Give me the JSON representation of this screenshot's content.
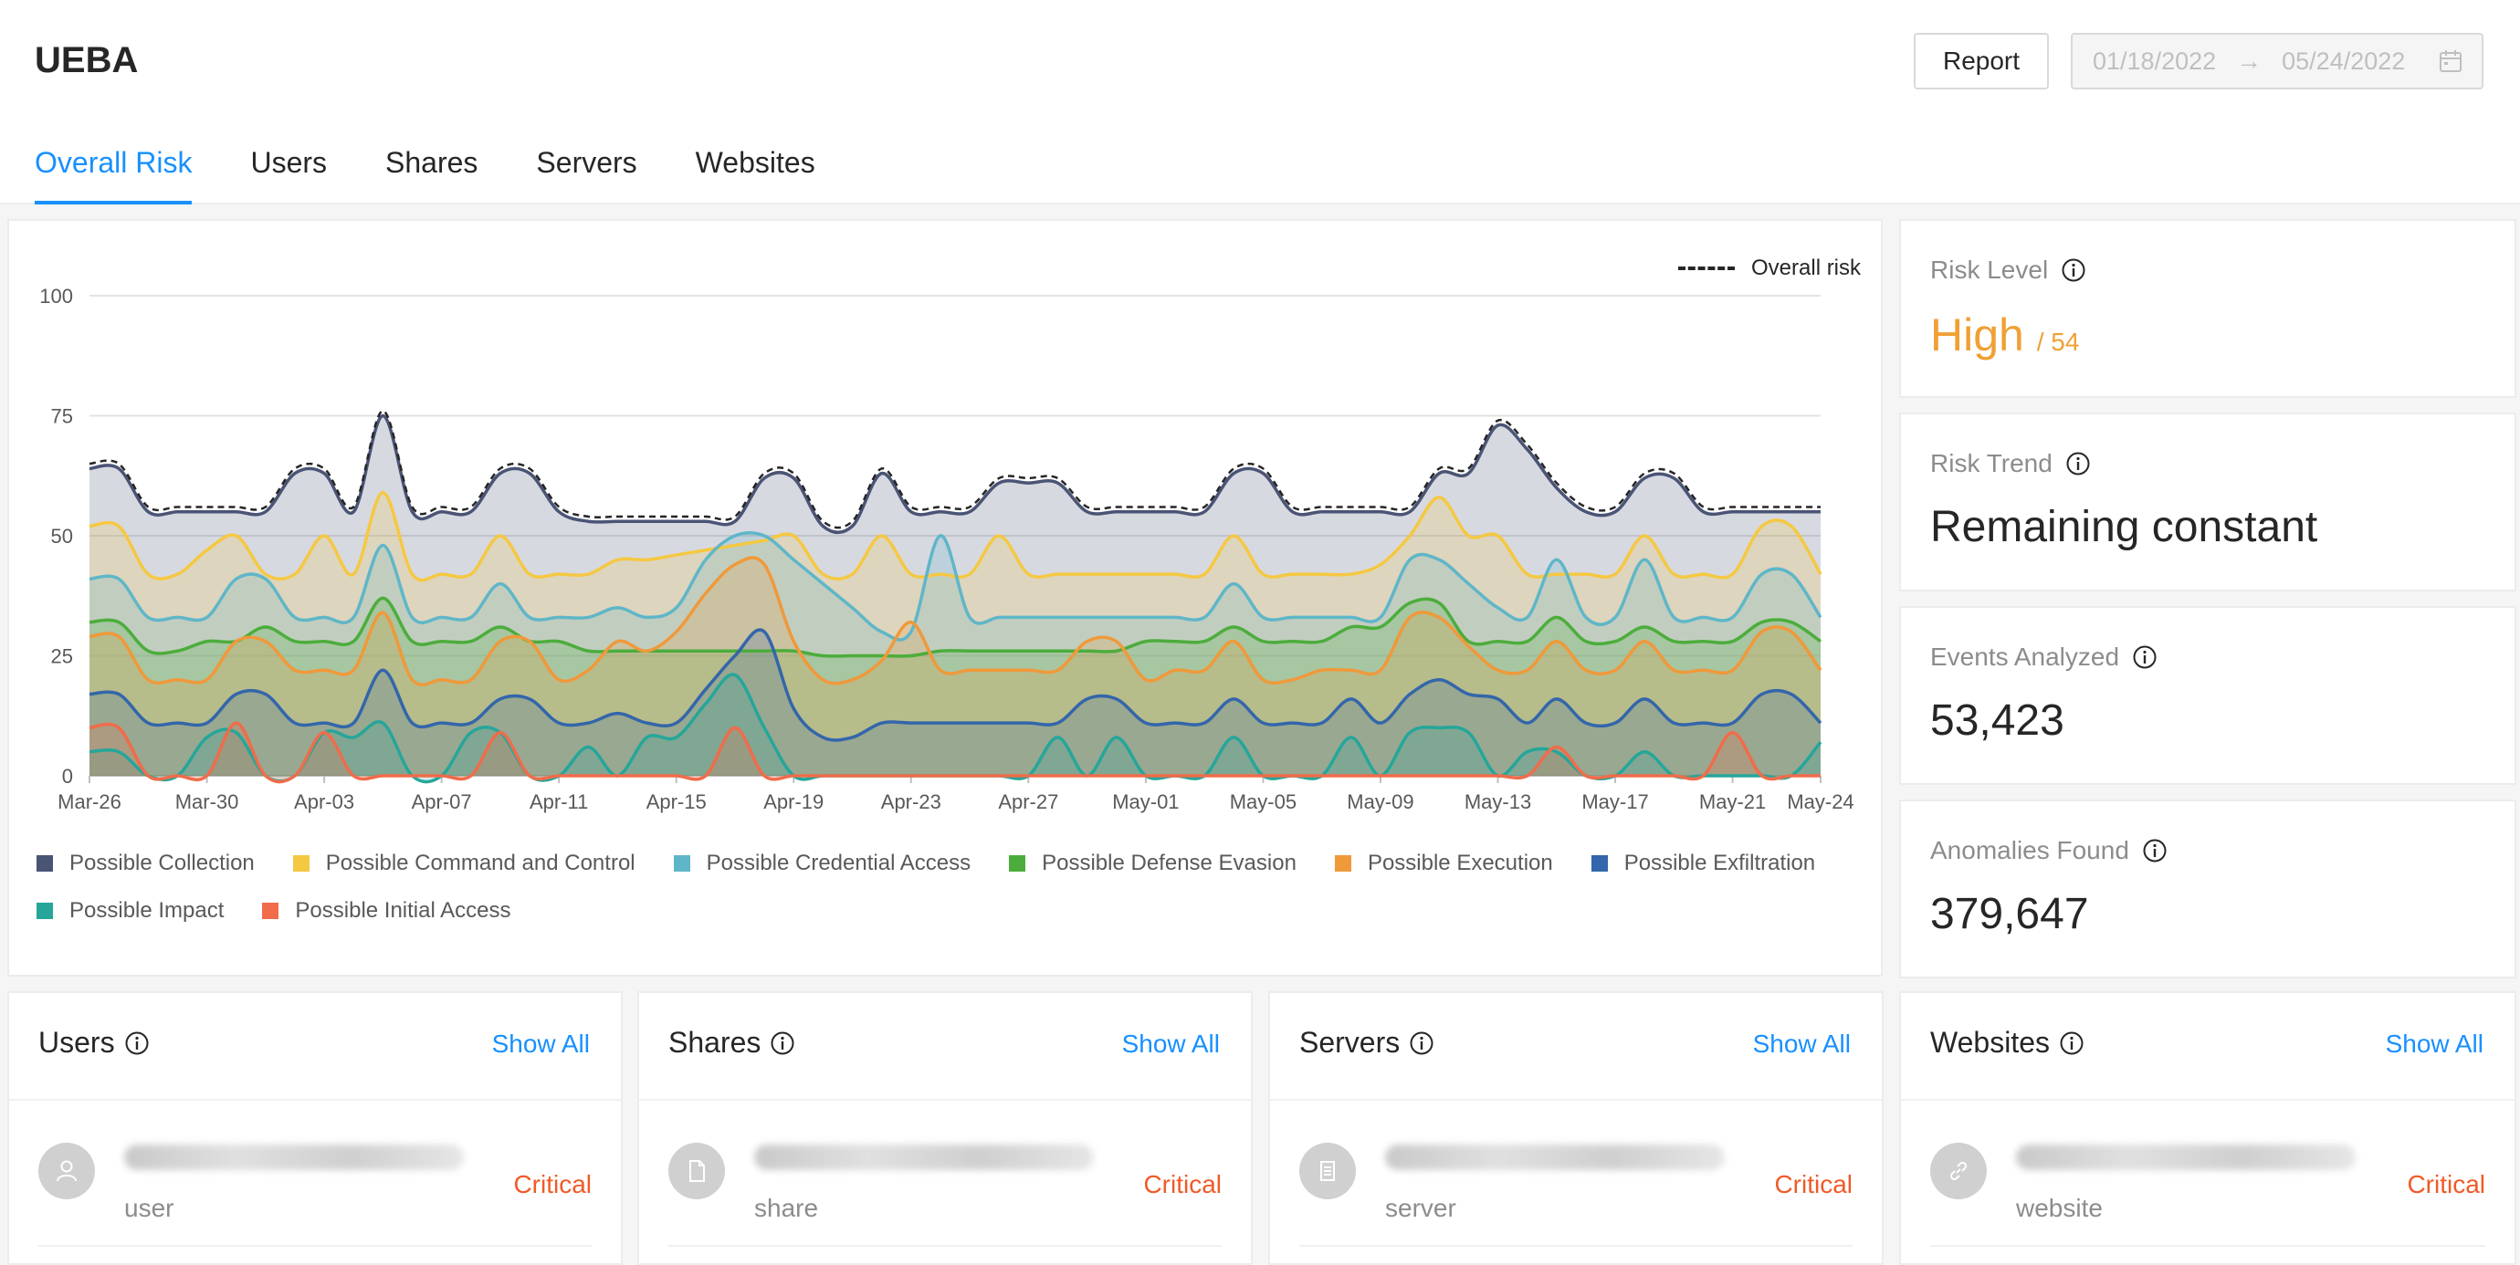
{
  "app": {
    "title": "UEBA"
  },
  "toolbar": {
    "report_label": "Report"
  },
  "date_range": {
    "start": "01/18/2022",
    "arrow": "→",
    "end": "05/24/2022",
    "icon": "calendar-icon"
  },
  "tabs": [
    {
      "label": "Overall Risk",
      "active": true
    },
    {
      "label": "Users",
      "active": false
    },
    {
      "label": "Shares",
      "active": false
    },
    {
      "label": "Servers",
      "active": false
    },
    {
      "label": "Websites",
      "active": false
    }
  ],
  "kpis": {
    "risk_level": {
      "label": "Risk Level",
      "value": "High",
      "sub": "/ 54"
    },
    "risk_trend": {
      "label": "Risk Trend",
      "value": "Remaining constant"
    },
    "events": {
      "label": "Events Analyzed",
      "value": "53,423"
    },
    "anomalies": {
      "label": "Anomalies Found",
      "value": "379,647"
    }
  },
  "lists": [
    {
      "title": "Users",
      "show_all": "Show All",
      "item_type": "user",
      "severity": "Critical",
      "icon": "user-icon"
    },
    {
      "title": "Shares",
      "show_all": "Show All",
      "item_type": "share",
      "severity": "Critical",
      "icon": "file-icon"
    },
    {
      "title": "Servers",
      "show_all": "Show All",
      "item_type": "server",
      "severity": "Critical",
      "icon": "server-icon"
    },
    {
      "title": "Websites",
      "show_all": "Show All",
      "item_type": "website",
      "severity": "Critical",
      "icon": "link-icon"
    }
  ],
  "colors": {
    "accent": "#1890ff",
    "risk_high": "#f0a033",
    "critical": "#f05a28"
  },
  "chart_data": {
    "type": "area",
    "title": "",
    "xlabel": "",
    "ylabel": "",
    "ylim": [
      0,
      100
    ],
    "yticks": [
      0,
      25,
      50,
      75,
      100
    ],
    "x_tick_labels": [
      "Mar-26",
      "Mar-30",
      "Apr-03",
      "Apr-07",
      "Apr-11",
      "Apr-15",
      "Apr-19",
      "Apr-23",
      "Apr-27",
      "May-01",
      "May-05",
      "May-09",
      "May-13",
      "May-17",
      "May-21",
      "May-24"
    ],
    "x_tick_days": [
      0,
      4,
      8,
      12,
      16,
      20,
      24,
      28,
      32,
      36,
      40,
      44,
      48,
      52,
      56,
      59
    ],
    "overall_legend": "Overall risk",
    "series": [
      {
        "name": "Possible Collection",
        "color": "#4a5475",
        "values": [
          64,
          64,
          55,
          55,
          55,
          55,
          55,
          63,
          63,
          55,
          75,
          55,
          55,
          55,
          63,
          63,
          55,
          53,
          53,
          53,
          53,
          53,
          53,
          62,
          62,
          52,
          52,
          63,
          55,
          55,
          55,
          61,
          61,
          61,
          55,
          55,
          55,
          55,
          55,
          63,
          63,
          55,
          55,
          55,
          55,
          55,
          63,
          63,
          73,
          68,
          60,
          55,
          55,
          62,
          62,
          55,
          55,
          55,
          55,
          55
        ]
      },
      {
        "name": "Possible Command and Control",
        "color": "#f5c842",
        "values": [
          52,
          52,
          42,
          42,
          47,
          50,
          42,
          42,
          50,
          42,
          59,
          42,
          42,
          42,
          50,
          42,
          42,
          42,
          45,
          45,
          46,
          47,
          48,
          49,
          50,
          42,
          42,
          50,
          42,
          42,
          42,
          50,
          42,
          42,
          42,
          42,
          42,
          42,
          42,
          50,
          42,
          42,
          42,
          42,
          44,
          50,
          58,
          50,
          50,
          42,
          42,
          42,
          42,
          50,
          42,
          42,
          42,
          52,
          52,
          42
        ]
      },
      {
        "name": "Possible Credential Access",
        "color": "#5fb6c8",
        "values": [
          41,
          41,
          33,
          33,
          33,
          41,
          41,
          33,
          33,
          33,
          48,
          33,
          33,
          33,
          40,
          33,
          33,
          33,
          35,
          33,
          35,
          45,
          50,
          50,
          45,
          40,
          35,
          30,
          30,
          50,
          33,
          33,
          33,
          33,
          33,
          33,
          33,
          33,
          33,
          40,
          33,
          33,
          33,
          33,
          33,
          45,
          45,
          40,
          35,
          33,
          45,
          33,
          33,
          45,
          33,
          33,
          33,
          42,
          42,
          33
        ]
      },
      {
        "name": "Possible Defense Evasion",
        "color": "#4cad3c",
        "values": [
          32,
          32,
          26,
          26,
          28,
          28,
          31,
          28,
          28,
          28,
          37,
          28,
          28,
          28,
          31,
          28,
          28,
          26,
          26,
          26,
          26,
          26,
          26,
          26,
          26,
          25,
          25,
          25,
          25,
          26,
          26,
          26,
          26,
          26,
          26,
          26,
          28,
          28,
          28,
          31,
          28,
          28,
          28,
          31,
          31,
          36,
          36,
          28,
          28,
          28,
          33,
          28,
          28,
          31,
          28,
          28,
          28,
          32,
          32,
          28
        ]
      },
      {
        "name": "Possible Execution",
        "color": "#f0993a",
        "values": [
          29,
          29,
          20,
          20,
          20,
          28,
          28,
          22,
          22,
          22,
          34,
          20,
          20,
          20,
          28,
          28,
          20,
          22,
          28,
          26,
          30,
          38,
          44,
          44,
          28,
          20,
          20,
          24,
          32,
          22,
          22,
          22,
          22,
          22,
          28,
          28,
          20,
          22,
          22,
          28,
          20,
          20,
          22,
          22,
          22,
          33,
          33,
          27,
          22,
          22,
          28,
          22,
          22,
          28,
          22,
          22,
          22,
          30,
          30,
          22
        ]
      },
      {
        "name": "Possible Exfiltration",
        "color": "#3366aa",
        "values": [
          17,
          17,
          11,
          11,
          11,
          17,
          17,
          11,
          11,
          11,
          22,
          11,
          11,
          11,
          16,
          16,
          11,
          11,
          13,
          11,
          11,
          18,
          25,
          30,
          14,
          8,
          8,
          11,
          11,
          11,
          11,
          11,
          11,
          11,
          16,
          16,
          11,
          11,
          11,
          16,
          11,
          11,
          11,
          16,
          11,
          17,
          20,
          17,
          16,
          11,
          16,
          11,
          11,
          16,
          11,
          11,
          11,
          17,
          17,
          11
        ]
      },
      {
        "name": "Possible Impact",
        "color": "#26a69a",
        "values": [
          5,
          5,
          0,
          0,
          8,
          9,
          0,
          0,
          9,
          8,
          11,
          0,
          0,
          9,
          9,
          0,
          0,
          6,
          0,
          8,
          8,
          15,
          21,
          10,
          0,
          0,
          0,
          0,
          0,
          0,
          0,
          0,
          0,
          8,
          0,
          8,
          0,
          0,
          0,
          8,
          0,
          0,
          0,
          8,
          0,
          9,
          10,
          9,
          0,
          5,
          5,
          0,
          0,
          5,
          0,
          0,
          0,
          0,
          0,
          7
        ]
      },
      {
        "name": "Possible Initial Access",
        "color": "#f06c4a",
        "values": [
          10,
          10,
          0,
          0,
          0,
          11,
          0,
          0,
          9,
          0,
          0,
          0,
          0,
          0,
          9,
          0,
          0,
          0,
          0,
          0,
          0,
          0,
          10,
          0,
          0,
          0,
          0,
          0,
          0,
          0,
          0,
          0,
          0,
          0,
          0,
          0,
          0,
          0,
          0,
          0,
          0,
          0,
          0,
          0,
          0,
          0,
          0,
          0,
          0,
          0,
          6,
          0,
          0,
          0,
          0,
          0,
          9,
          0,
          0,
          0
        ]
      }
    ],
    "overall_risk": [
      65,
      65,
      56,
      56,
      56,
      56,
      56,
      64,
      64,
      56,
      76,
      56,
      56,
      56,
      64,
      64,
      56,
      54,
      54,
      54,
      54,
      54,
      54,
      63,
      63,
      53,
      53,
      64,
      56,
      56,
      56,
      62,
      62,
      62,
      56,
      56,
      56,
      56,
      56,
      64,
      64,
      56,
      56,
      56,
      56,
      56,
      64,
      64,
      74,
      69,
      61,
      56,
      56,
      63,
      63,
      56,
      56,
      56,
      56,
      56
    ]
  }
}
